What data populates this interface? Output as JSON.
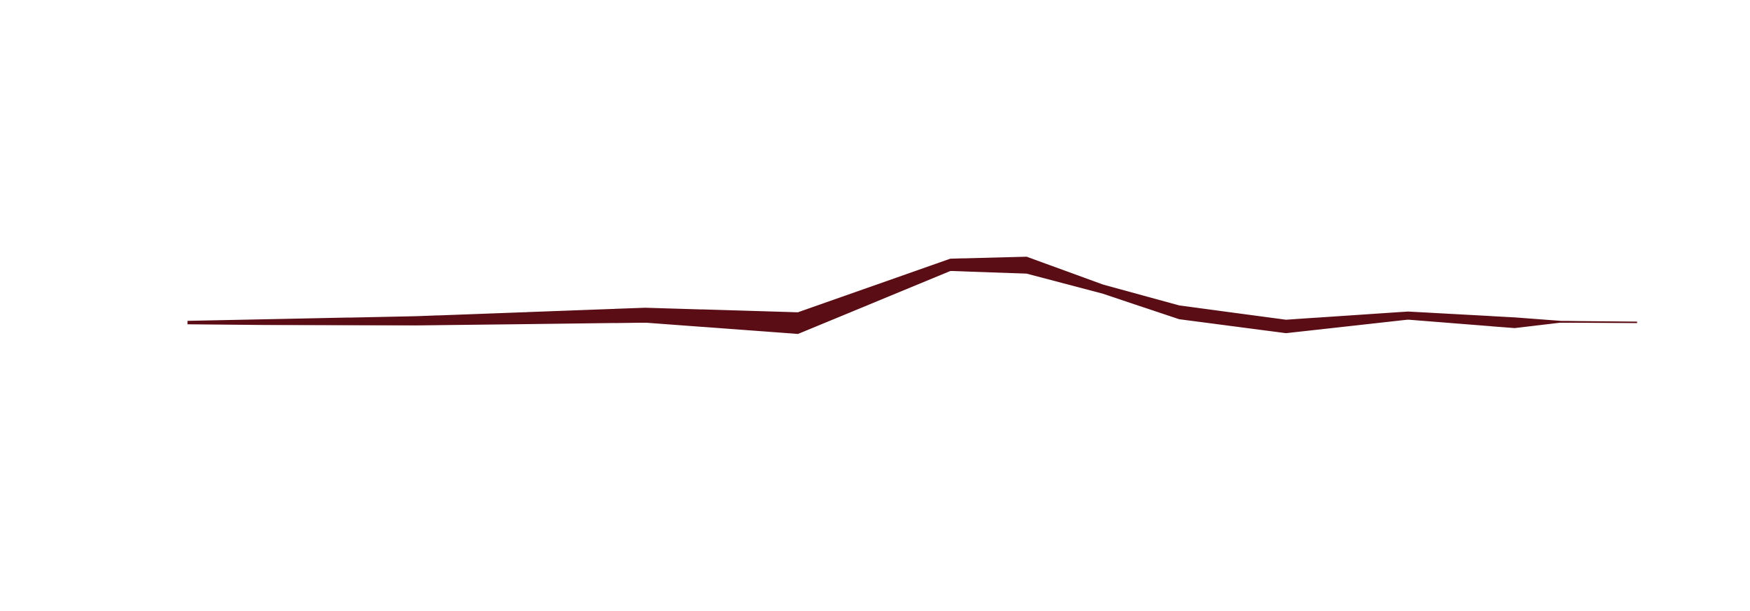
{
  "chart_data": {
    "type": "area",
    "title": "",
    "xlabel": "",
    "ylabel": "",
    "grid": false,
    "legend": "none",
    "colors": {
      "stroke": "#5a0d15",
      "background": "#ffffff"
    },
    "series": [
      {
        "label_visible": false,
        "points": [
          {
            "x": 0,
            "upper": 0.4,
            "lower": -0.3
          },
          {
            "x": 5,
            "upper": 0.8,
            "lower": -0.5
          },
          {
            "x": 15,
            "upper": 1.6,
            "lower": -0.6
          },
          {
            "x": 30,
            "upper": 3.8,
            "lower": 0.1
          },
          {
            "x": 40,
            "upper": 2.6,
            "lower": -2.8
          },
          {
            "x": 50,
            "upper": 16.5,
            "lower": 13.5
          },
          {
            "x": 55,
            "upper": 17.0,
            "lower": 12.8
          },
          {
            "x": 60,
            "upper": 9.8,
            "lower": 7.6
          },
          {
            "x": 65,
            "upper": 4.4,
            "lower": 1.0
          },
          {
            "x": 72,
            "upper": 0.7,
            "lower": -2.6
          },
          {
            "x": 80,
            "upper": 2.8,
            "lower": 0.9
          },
          {
            "x": 87,
            "upper": 1.3,
            "lower": -1.3
          },
          {
            "x": 90,
            "upper": 0.4,
            "lower": 0.1
          },
          {
            "x": 95,
            "upper": 0.2,
            "lower": 0.0
          }
        ]
      }
    ]
  }
}
